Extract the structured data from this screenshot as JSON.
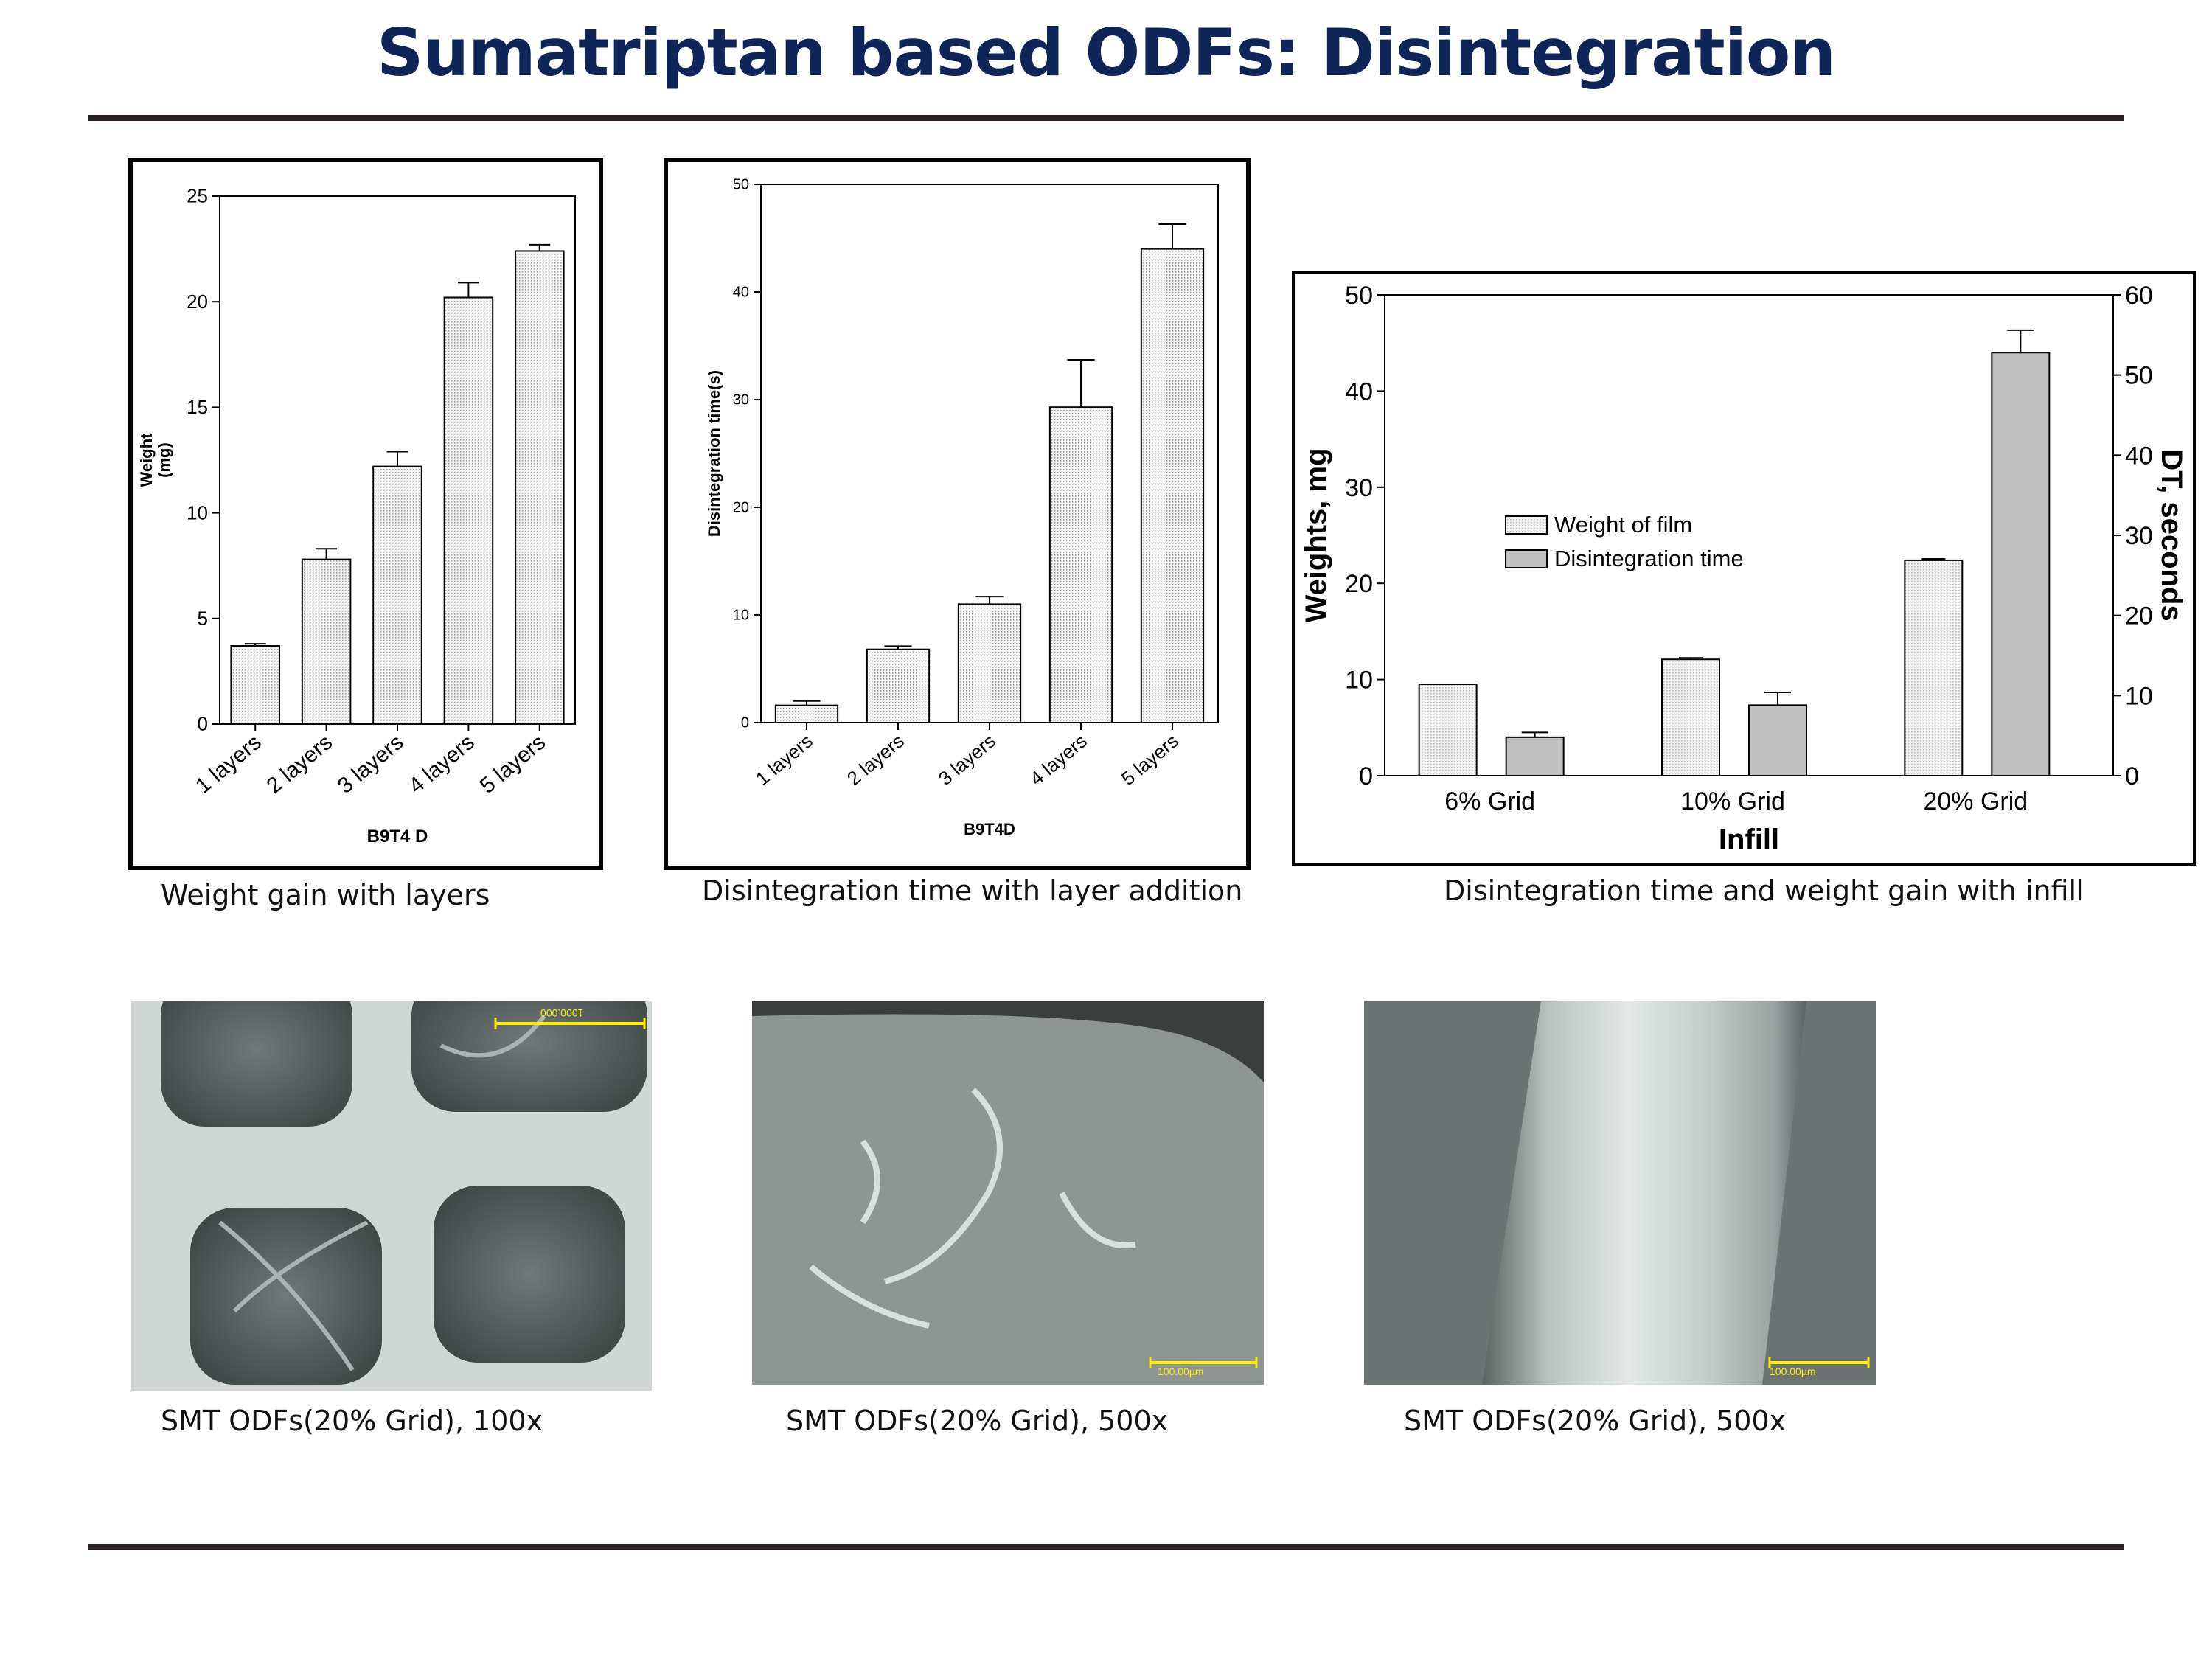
{
  "title": "Sumatriptan based ODFs: Disintegration",
  "captions": {
    "chart1": "Weight gain with layers",
    "chart2": "Disintegration time with layer addition",
    "chart3": "Disintegration time and weight gain with infill",
    "photo1": "SMT ODFs(20% Grid), 100x",
    "photo2": "SMT ODFs(20% Grid), 500x",
    "photo3": "SMT ODFs(20% Grid), 500x"
  },
  "photos": {
    "photo1_scale": "1000.000",
    "photo2_scale": "100.00µm",
    "photo3_scale": "100.00µm"
  },
  "chart_data": [
    {
      "type": "bar",
      "categories": [
        "1 layers",
        "2 layers",
        "3 layers",
        "4 layers",
        "5 layers"
      ],
      "values": [
        3.7,
        7.8,
        12.2,
        20.2,
        22.4
      ],
      "errors": [
        0.1,
        0.5,
        0.7,
        0.7,
        0.3
      ],
      "ylabel_line1": "Weight",
      "ylabel_line2": "(mg)",
      "xlabel": "B9T4 D",
      "ylim": [
        0,
        25
      ],
      "yticks": [
        0,
        5,
        10,
        15,
        20,
        25
      ]
    },
    {
      "type": "bar",
      "categories": [
        "1 layers",
        "2 layers",
        "3 layers",
        "4 layers",
        "5 layers"
      ],
      "values": [
        1.6,
        6.8,
        11.0,
        29.3,
        44.0
      ],
      "errors": [
        0.4,
        0.3,
        0.7,
        4.4,
        2.3
      ],
      "ylabel": "Disintegration time(s)",
      "xlabel": "B9T4D",
      "ylim": [
        0,
        50
      ],
      "yticks": [
        0,
        10,
        20,
        30,
        40,
        50
      ]
    },
    {
      "type": "bar",
      "categories": [
        "6% Grid",
        "10% Grid",
        "20% Grid"
      ],
      "series": [
        {
          "name": "Weight of film",
          "axis": "left",
          "values": [
            9.5,
            12.1,
            22.4
          ],
          "errors": [
            0,
            0.15,
            0.15
          ]
        },
        {
          "name": "Disintegration time",
          "axis": "right",
          "values": [
            4.8,
            8.8,
            52.8
          ],
          "errors": [
            0.6,
            1.6,
            2.8
          ]
        }
      ],
      "ylabel": "Weights, mg",
      "y2label": "DT, seconds",
      "xlabel": "Infill",
      "ylim": [
        0,
        50
      ],
      "y2lim": [
        0,
        60
      ],
      "yticks": [
        0,
        10,
        20,
        30,
        40,
        50
      ],
      "y2ticks": [
        0,
        10,
        20,
        30,
        40,
        50,
        60
      ],
      "legend_position": "center-left",
      "colors": {
        "weight": "#f2f2f2",
        "dt": "#c0c0c0"
      }
    }
  ]
}
